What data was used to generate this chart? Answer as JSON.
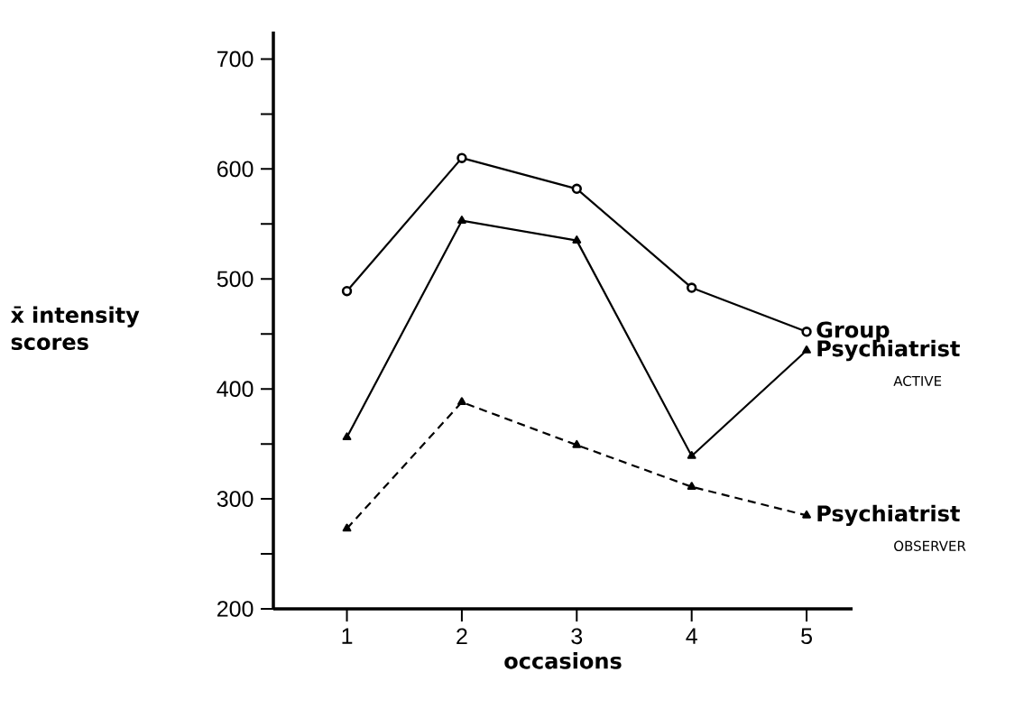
{
  "chart_data": {
    "type": "line",
    "xlabel": "occasions",
    "ylabel": "x̄ intensity scores",
    "categories": [
      "1",
      "2",
      "3",
      "4",
      "5"
    ],
    "ylim": [
      200,
      725
    ],
    "yticks": [
      200,
      {
        "value": 250,
        "label": null
      },
      300,
      {
        "value": 350,
        "label": null
      },
      400,
      {
        "value": 450,
        "label": null
      },
      500,
      {
        "value": 550,
        "label": null
      },
      600,
      {
        "value": 650,
        "label": null
      },
      700
    ],
    "series": [
      {
        "name": "Group",
        "color": "#000000",
        "marker": "circle",
        "line_style": "solid",
        "values": [
          489,
          610,
          582,
          492,
          452
        ]
      },
      {
        "name": "Psychiatrist",
        "color": "#000000",
        "marker": "triangle",
        "line_style": "solid",
        "values": [
          356,
          553,
          535,
          339,
          435
        ]
      },
      {
        "name": "Psychiatrist",
        "color": "#000000",
        "marker": "triangle",
        "line_style": "dashed",
        "values": [
          273,
          388,
          349,
          311,
          285
        ]
      }
    ],
    "annotations": [
      "ACTIVE",
      "OBSERVER"
    ]
  }
}
